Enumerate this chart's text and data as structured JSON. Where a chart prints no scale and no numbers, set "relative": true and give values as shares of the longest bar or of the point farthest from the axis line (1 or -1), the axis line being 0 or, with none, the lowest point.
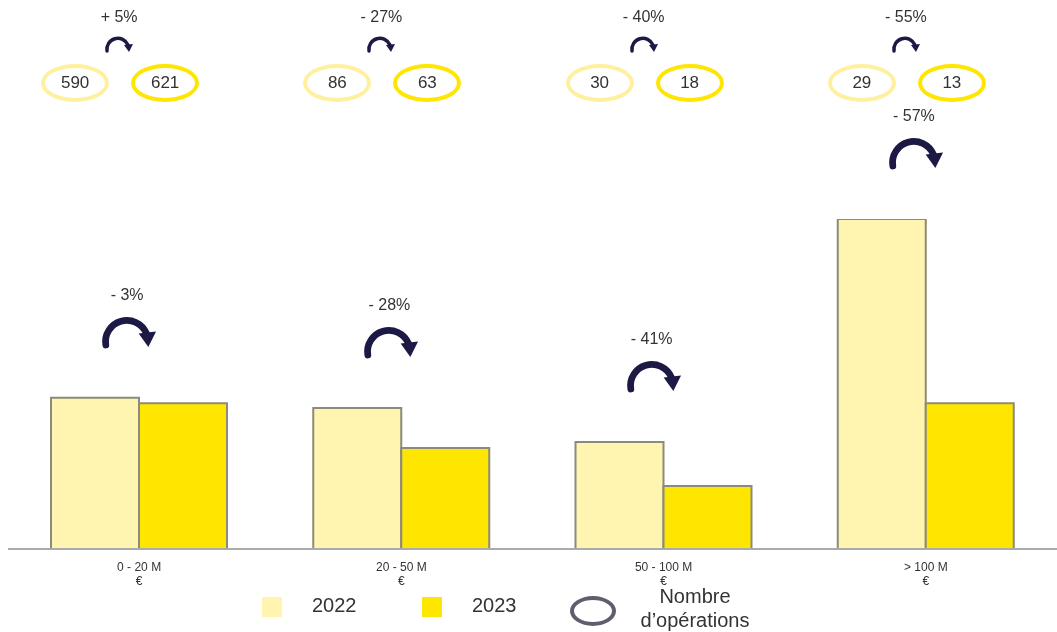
{
  "chart_data": {
    "type": "bar",
    "relative": true,
    "categories": [
      "0 - 20 M\n€",
      "20 - 50 M\n€",
      "50 - 100 M\n€",
      "> 100 M\n€"
    ],
    "series": [
      {
        "name": "2022",
        "color": "#fff5b0",
        "values": [
          0.458,
          0.427,
          0.324,
          1
        ]
      },
      {
        "name": "2023",
        "color": "#ffe600",
        "values": [
          0.442,
          0.306,
          0.191,
          0.442
        ]
      }
    ],
    "annotations": [
      "+ 5%",
      "590",
      "621",
      "- 3%",
      "- 27%",
      "86",
      "63",
      "- 28%",
      "- 40%",
      "30",
      "18",
      "- 41%",
      "- 55%",
      "29",
      "13",
      "- 57%",
      "Nombre\nd’opérations"
    ],
    "legend": "bottom",
    "grid": false
  }
}
